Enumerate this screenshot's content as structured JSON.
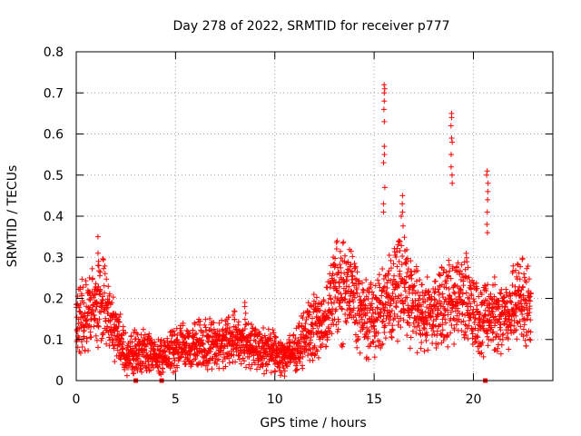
{
  "chart_data": {
    "type": "scatter",
    "title": "Day 278 of 2022, SRMTID for receiver p777",
    "xlabel": "GPS time / hours",
    "ylabel": "SRMTID / TECUs",
    "xlim": [
      0,
      24
    ],
    "ylim": [
      0,
      0.8
    ],
    "grid": true,
    "marker": "+",
    "color": "#ff0000",
    "x_ticks": [
      0,
      5,
      10,
      15,
      20
    ],
    "x_tick_labels": [
      "0",
      "5",
      "10",
      "15",
      "20"
    ],
    "y_ticks": [
      0,
      0.1,
      0.2,
      0.3,
      0.4,
      0.5,
      0.6,
      0.7,
      0.8
    ],
    "y_tick_labels": [
      "0",
      "0.1",
      "0.2",
      "0.3",
      "0.4",
      "0.5",
      "0.6",
      "0.7",
      "0.8"
    ],
    "series": [
      {
        "name": "SRMTID",
        "envelope_hours": [
          0,
          0.5,
          1.0,
          1.3,
          1.7,
          2.2,
          2.6,
          3.0,
          3.5,
          4.0,
          4.5,
          5.0,
          6.0,
          7.0,
          8.0,
          8.5,
          9.0,
          10.0,
          10.5,
          11.0,
          11.5,
          12.0,
          12.5,
          13.0,
          13.5,
          14.0,
          14.5,
          15.0,
          15.5,
          16.0,
          16.5,
          17.0,
          17.5,
          18.0,
          18.5,
          19.0,
          19.5,
          20.0,
          20.5,
          21.0,
          21.5,
          22.0,
          22.5,
          22.9
        ],
        "envelope_median": [
          0.16,
          0.15,
          0.18,
          0.2,
          0.15,
          0.1,
          0.06,
          0.08,
          0.07,
          0.06,
          0.06,
          0.08,
          0.09,
          0.09,
          0.1,
          0.1,
          0.08,
          0.07,
          0.06,
          0.07,
          0.11,
          0.13,
          0.14,
          0.22,
          0.22,
          0.21,
          0.15,
          0.15,
          0.18,
          0.22,
          0.24,
          0.18,
          0.16,
          0.18,
          0.18,
          0.18,
          0.22,
          0.17,
          0.15,
          0.16,
          0.16,
          0.18,
          0.2,
          0.16
        ],
        "spikes": [
          {
            "x": 15.5,
            "values": [
              0.72,
              0.71,
              0.7,
              0.68,
              0.66,
              0.63,
              0.57,
              0.55,
              0.53,
              0.47,
              0.43,
              0.41
            ]
          },
          {
            "x": 16.4,
            "values": [
              0.45,
              0.43,
              0.41,
              0.4
            ]
          },
          {
            "x": 18.9,
            "values": [
              0.65,
              0.64,
              0.62,
              0.59,
              0.58,
              0.55,
              0.52,
              0.5,
              0.48
            ]
          },
          {
            "x": 20.7,
            "values": [
              0.51,
              0.5,
              0.48,
              0.46,
              0.44,
              0.41,
              0.38,
              0.36
            ]
          },
          {
            "x": 1.1,
            "values": [
              0.35,
              0.31,
              0.29,
              0.28
            ]
          },
          {
            "x": 8.5,
            "values": [
              0.19,
              0.18
            ]
          }
        ],
        "zero_points_hours": [
          3.0,
          4.3,
          20.6
        ]
      }
    ]
  }
}
